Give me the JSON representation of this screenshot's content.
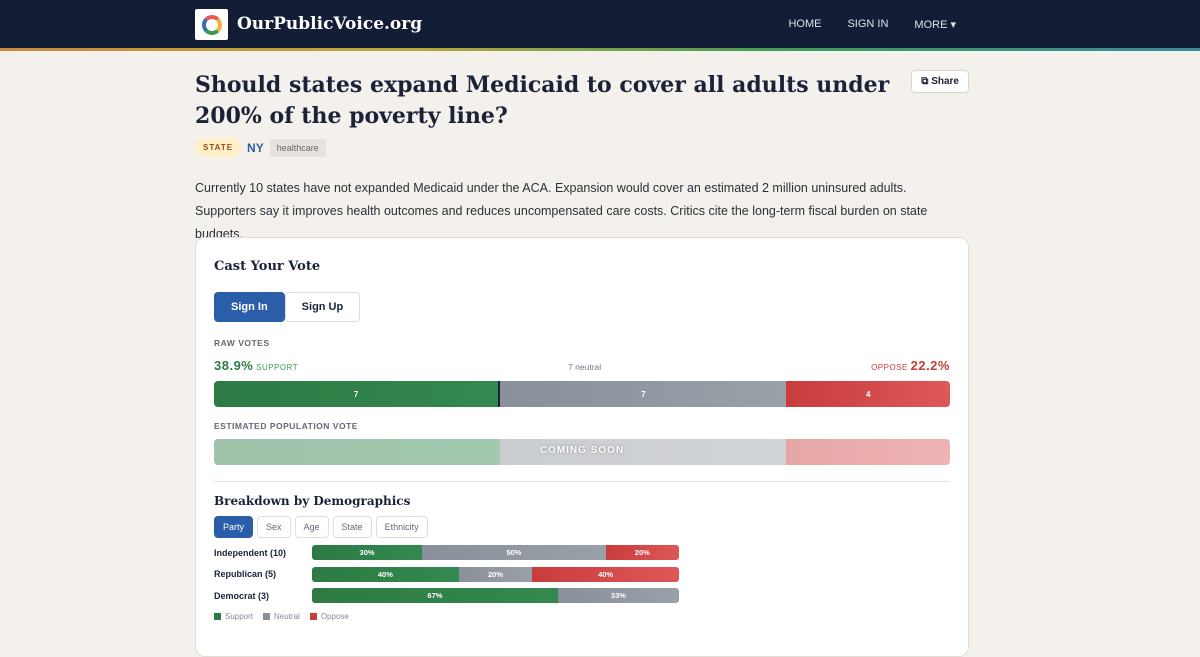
{
  "header": {
    "brand": "OurPublicVoice.org",
    "logo_text": "OurPublicVoice",
    "nav": [
      "HOME",
      "SIGN IN",
      "MORE ▾"
    ]
  },
  "question": {
    "title": "Should states expand Medicaid to cover all adults under 200% of the poverty line?",
    "share": "Share",
    "tags": {
      "level": "STATE",
      "state": "NY",
      "topic": "healthcare"
    },
    "description": "Currently 10 states have not expanded Medicaid under the ACA. Expansion would cover an estimated 2 million uninsured adults. Supporters say it improves health outcomes and reduces uncompensated care costs. Critics cite the long-term fiscal burden on state budgets."
  },
  "vote": {
    "title": "Cast Your Vote",
    "sign_in": "Sign In",
    "sign_up": "Sign Up",
    "raw_label": "RAW VOTES",
    "support_pct": "38.9%",
    "support_label": "SUPPORT",
    "neutral_text": "7 neutral",
    "oppose_label": "OPPOSE",
    "oppose_pct": "22.2%",
    "counts": {
      "support": 7,
      "neutral": 7,
      "oppose": 4
    },
    "counts_text": {
      "support": "7",
      "neutral": "7",
      "oppose": "4"
    },
    "est_label": "ESTIMATED POPULATION VOTE",
    "coming_soon": "COMING SOON"
  },
  "demographics": {
    "title": "Breakdown by Demographics",
    "tabs": [
      "Party",
      "Sex",
      "Age",
      "State",
      "Ethnicity"
    ],
    "active_tab": "Party",
    "rows": [
      {
        "label": "Independent (10)",
        "support": 30,
        "neutral": 50,
        "oppose": 20,
        "s": "30%",
        "n": "50%",
        "o": "20%"
      },
      {
        "label": "Republican (5)",
        "support": 40,
        "neutral": 20,
        "oppose": 40,
        "s": "40%",
        "n": "20%",
        "o": "40%"
      },
      {
        "label": "Democrat (3)",
        "support": 67,
        "neutral": 33,
        "oppose": 0,
        "s": "67%",
        "n": "33%",
        "o": ""
      }
    ],
    "legend": [
      "Support",
      "Neutral",
      "Oppose"
    ]
  },
  "colors": {
    "header": "#131d36",
    "support": "#2e7a44",
    "neutral": "#8a909a",
    "oppose": "#c83c3c",
    "accent": "#2b5ea8"
  }
}
